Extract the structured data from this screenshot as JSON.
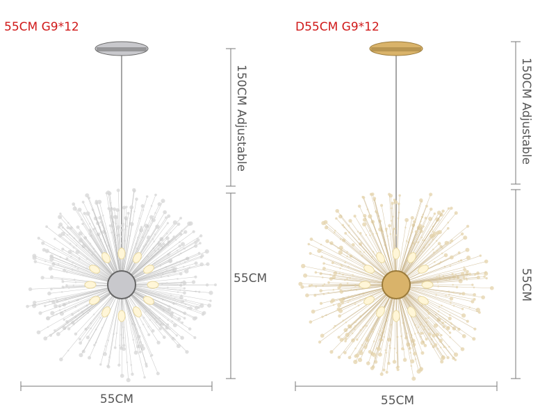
{
  "products": [
    {
      "label": "55CM G9*12",
      "height_label": "150CM Adjustable",
      "diameter_label_side": "55CM",
      "diameter_label_bottom": "55CM"
    },
    {
      "label": "D55CM G9*12",
      "height_label": "150CM Adjustable",
      "diameter_label_side": "55CM",
      "diameter_label_bottom": "55CM"
    }
  ]
}
